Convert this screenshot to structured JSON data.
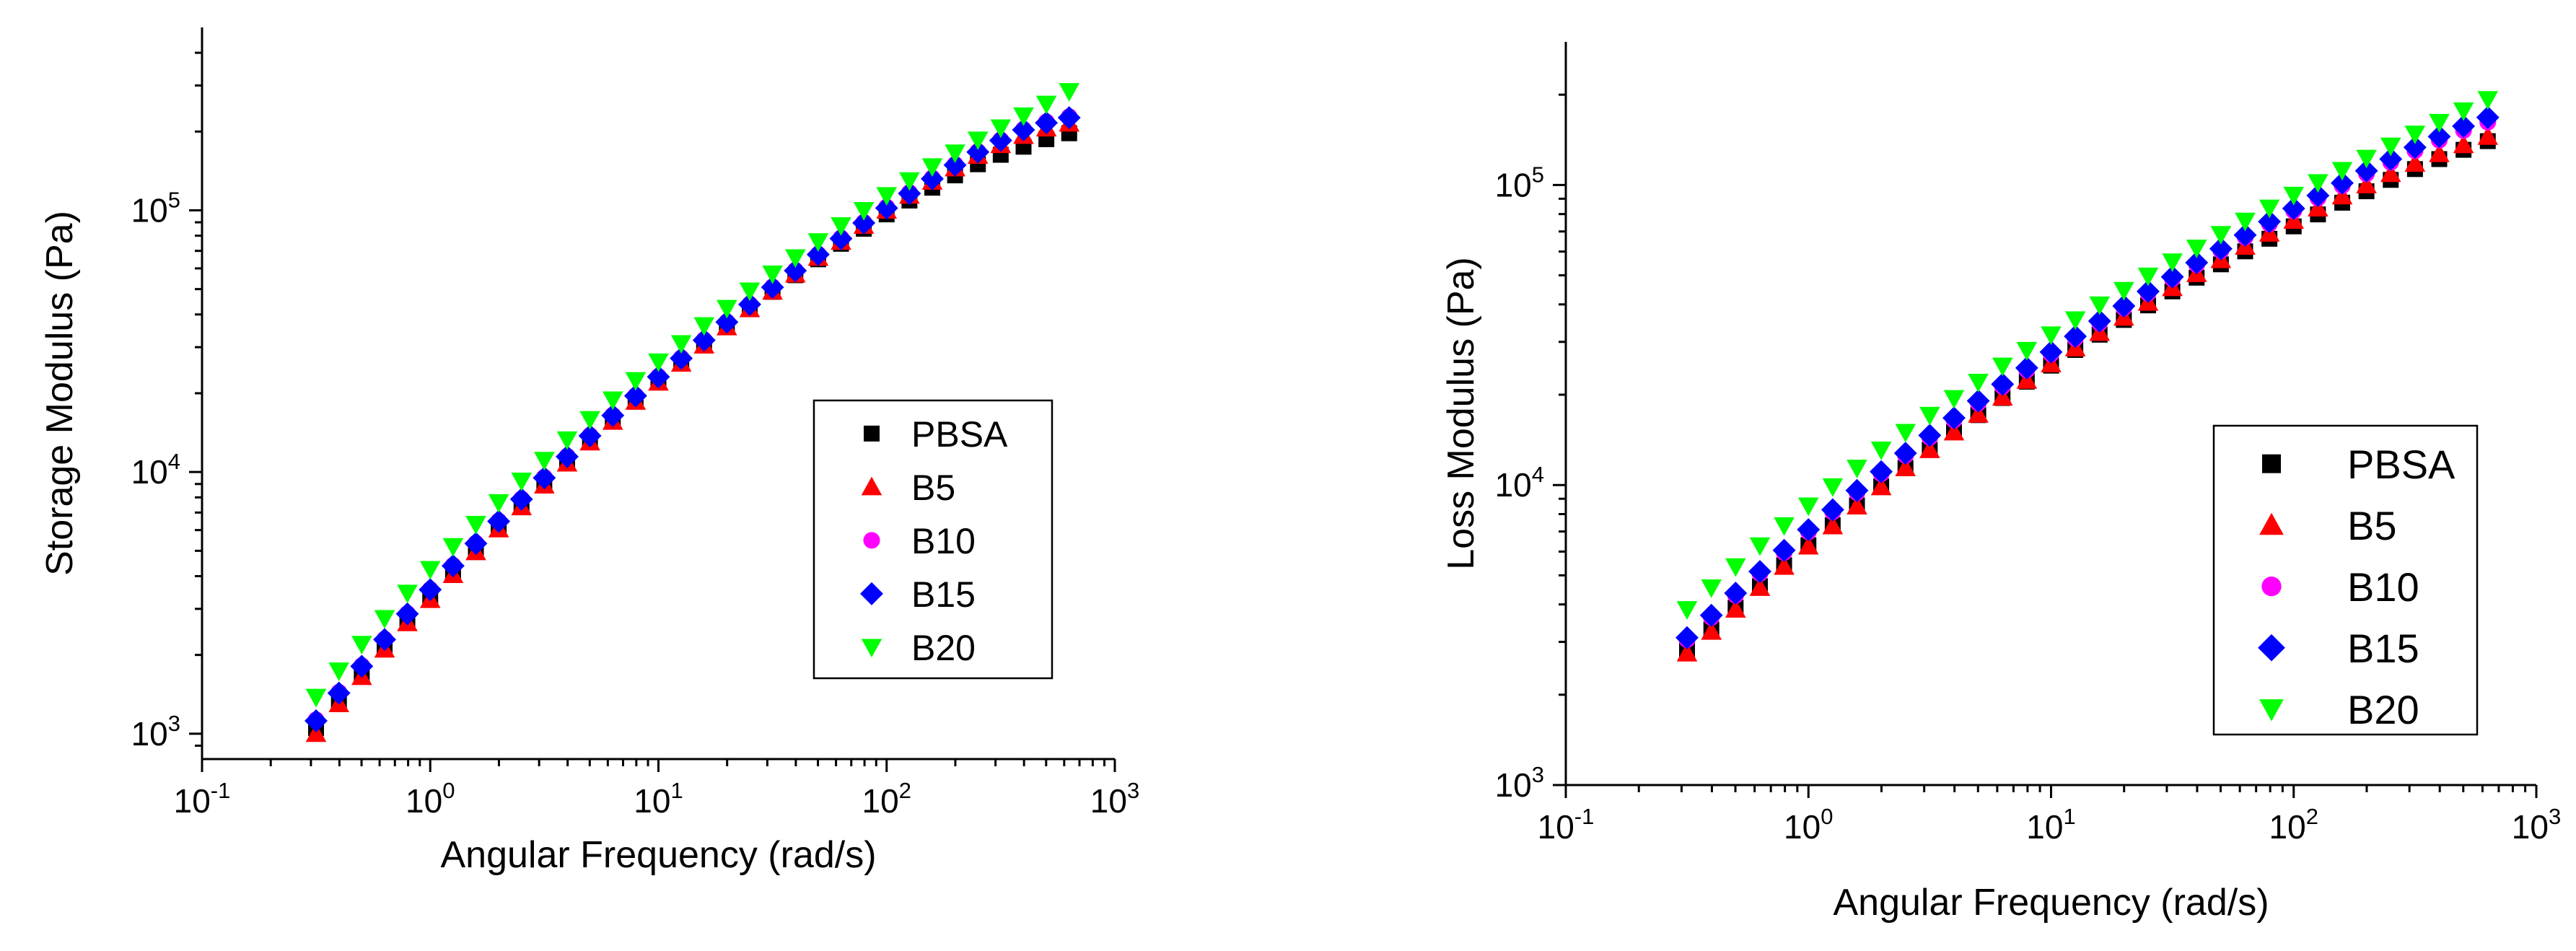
{
  "chart_data": [
    {
      "type": "scatter",
      "title": "",
      "xlabel": "Angular Frequency (rad/s)",
      "ylabel": "Storage Modulus (Pa)",
      "xscale": "log",
      "yscale": "log",
      "xlim": [
        0.1,
        1000
      ],
      "ylim": [
        800,
        500000
      ],
      "grid": false,
      "legend_position": "middle-right",
      "x_tick_labels": [
        {
          "base": "10",
          "exp": "-1"
        },
        {
          "base": "10",
          "exp": "0"
        },
        {
          "base": "10",
          "exp": "1"
        },
        {
          "base": "10",
          "exp": "2"
        },
        {
          "base": "10",
          "exp": "3"
        }
      ],
      "y_tick_labels": [
        {
          "base": "10",
          "exp": "3"
        },
        {
          "base": "10",
          "exp": "4"
        },
        {
          "base": "10",
          "exp": "5"
        }
      ],
      "x": [
        0.316,
        0.398,
        0.501,
        0.631,
        0.794,
        1.0,
        1.259,
        1.585,
        1.995,
        2.512,
        3.162,
        3.981,
        5.012,
        6.31,
        7.943,
        10.0,
        12.59,
        15.85,
        19.95,
        25.12,
        31.62,
        39.81,
        50.12,
        63.1,
        79.43,
        100.0,
        125.9,
        158.5,
        199.5,
        251.2,
        316.2,
        398.1,
        501.2,
        631.0
      ],
      "series": [
        {
          "name": "PBSA",
          "marker": "square",
          "color": "#000000",
          "values": [
            1050,
            1340,
            1700,
            2150,
            2700,
            3350,
            4150,
            5050,
            6150,
            7500,
            9100,
            11000,
            13200,
            15800,
            18800,
            22200,
            26200,
            30800,
            36000,
            42000,
            48800,
            56500,
            65000,
            74500,
            85000,
            96500,
            109000,
            122000,
            136000,
            150000,
            163000,
            175000,
            187000,
            197000
          ]
        },
        {
          "name": "B5",
          "marker": "triangle-up",
          "color": "#ff0000",
          "values": [
            1000,
            1300,
            1650,
            2100,
            2650,
            3250,
            4050,
            4950,
            6050,
            7350,
            8900,
            10800,
            13000,
            15600,
            18600,
            22000,
            26000,
            30500,
            35800,
            42000,
            49000,
            57000,
            66000,
            76000,
            87500,
            100000,
            114000,
            129000,
            145000,
            162000,
            178000,
            193000,
            206000,
            215000
          ]
        },
        {
          "name": "B10",
          "marker": "circle",
          "color": "#ff00ff",
          "values": [
            1130,
            1440,
            1820,
            2300,
            2880,
            3560,
            4400,
            5350,
            6500,
            7900,
            9550,
            11500,
            13800,
            16500,
            19600,
            23200,
            27300,
            32000,
            37500,
            43800,
            51000,
            59000,
            68000,
            78500,
            90000,
            103000,
            117000,
            133000,
            150000,
            168000,
            186000,
            204000,
            218000,
            228000
          ]
        },
        {
          "name": "B15",
          "marker": "diamond",
          "color": "#0000ff",
          "values": [
            1120,
            1430,
            1810,
            2290,
            2870,
            3550,
            4380,
            5330,
            6480,
            7870,
            9500,
            11450,
            13750,
            16450,
            19550,
            23100,
            27200,
            31900,
            37400,
            43700,
            50800,
            58800,
            67800,
            78000,
            89500,
            102000,
            116000,
            132000,
            149000,
            167000,
            185000,
            203000,
            216000,
            226000
          ]
        },
        {
          "name": "B20",
          "marker": "triangle-down",
          "color": "#00ff00",
          "values": [
            1380,
            1740,
            2200,
            2760,
            3450,
            4250,
            5200,
            6320,
            7650,
            9250,
            11100,
            13300,
            15900,
            18900,
            22400,
            26400,
            31000,
            36300,
            42300,
            49300,
            57200,
            66000,
            76000,
            87500,
            100000,
            114000,
            130000,
            147000,
            166000,
            186000,
            207000,
            230000,
            255000,
            285000
          ]
        }
      ]
    },
    {
      "type": "scatter",
      "title": "",
      "xlabel": "Angular Frequency (rad/s)",
      "ylabel": "Loss Modulus (Pa)",
      "xscale": "log",
      "yscale": "log",
      "xlim": [
        0.1,
        1000
      ],
      "ylim": [
        1000,
        300000
      ],
      "grid": false,
      "legend_position": "bottom-right",
      "x_tick_labels": [
        {
          "base": "10",
          "exp": "-1"
        },
        {
          "base": "10",
          "exp": "0"
        },
        {
          "base": "10",
          "exp": "1"
        },
        {
          "base": "10",
          "exp": "2"
        },
        {
          "base": "10",
          "exp": "3"
        }
      ],
      "y_tick_labels": [
        {
          "base": "10",
          "exp": "3"
        },
        {
          "base": "10",
          "exp": "4"
        },
        {
          "base": "10",
          "exp": "5"
        }
      ],
      "x": [
        0.316,
        0.398,
        0.501,
        0.631,
        0.794,
        1.0,
        1.259,
        1.585,
        1.995,
        2.512,
        3.162,
        3.981,
        5.012,
        6.31,
        7.943,
        10.0,
        12.59,
        15.85,
        19.95,
        25.12,
        31.62,
        39.81,
        50.12,
        63.1,
        79.43,
        100.0,
        125.9,
        158.5,
        199.5,
        251.2,
        316.2,
        398.1,
        501.2,
        631.0
      ],
      "series": [
        {
          "name": "PBSA",
          "marker": "square",
          "color": "#000000",
          "values": [
            2800,
            3300,
            3900,
            4600,
            5400,
            6300,
            7350,
            8550,
            9900,
            11400,
            13100,
            15000,
            17100,
            19500,
            22100,
            25000,
            28200,
            31700,
            35500,
            39700,
            44200,
            49100,
            54400,
            60100,
            66200,
            72800,
            79800,
            87300,
            95300,
            104000,
            113000,
            122000,
            131000,
            140000
          ]
        },
        {
          "name": "B5",
          "marker": "triangle-up",
          "color": "#ff0000",
          "values": [
            2750,
            3250,
            3850,
            4550,
            5350,
            6250,
            7300,
            8500,
            9850,
            11400,
            13100,
            15000,
            17200,
            19600,
            22300,
            25300,
            28600,
            32200,
            36200,
            40600,
            45400,
            50600,
            56300,
            62400,
            69000,
            76100,
            83700,
            91800,
            100000,
            109000,
            118000,
            127000,
            136000,
            145000
          ]
        },
        {
          "name": "B10",
          "marker": "circle",
          "color": "#ff00ff",
          "values": [
            3050,
            3620,
            4290,
            5070,
            5960,
            6980,
            8130,
            9430,
            10900,
            12550,
            14400,
            16450,
            18750,
            21300,
            24150,
            27300,
            30800,
            34650,
            38900,
            43550,
            48650,
            54250,
            60350,
            67000,
            74200,
            82000,
            90400,
            99400,
            109000,
            119000,
            130000,
            141000,
            152000,
            162000
          ]
        },
        {
          "name": "B15",
          "marker": "diamond",
          "color": "#0000ff",
          "values": [
            3100,
            3680,
            4360,
            5150,
            6060,
            7100,
            8270,
            9590,
            11080,
            12760,
            14640,
            16730,
            19070,
            21670,
            24560,
            27760,
            31300,
            35200,
            39500,
            44200,
            49400,
            55100,
            61300,
            68100,
            75500,
            83500,
            92200,
            101500,
            111500,
            122000,
            133500,
            145000,
            157000,
            168000
          ]
        },
        {
          "name": "B20",
          "marker": "triangle-down",
          "color": "#00ff00",
          "values": [
            3850,
            4550,
            5350,
            6280,
            7330,
            8530,
            9880,
            11400,
            13100,
            15000,
            17100,
            19450,
            22050,
            24950,
            28150,
            31700,
            35600,
            39900,
            44600,
            49800,
            55500,
            61700,
            68500,
            75900,
            83900,
            92600,
            102000,
            112000,
            123000,
            135000,
            148000,
            162000,
            177000,
            193000
          ]
        }
      ]
    }
  ]
}
